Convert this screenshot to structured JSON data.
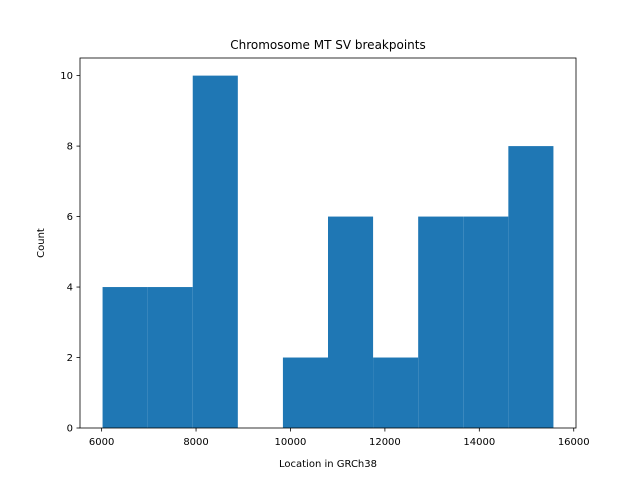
{
  "chart_data": {
    "type": "bar",
    "title": "Chromosome MT SV breakpoints",
    "xlabel": "Location in GRCh38",
    "ylabel": "Count",
    "bins": [
      {
        "start": 6020,
        "end": 6975,
        "count": 4
      },
      {
        "start": 6975,
        "end": 7930,
        "count": 4
      },
      {
        "start": 7930,
        "end": 8885,
        "count": 10
      },
      {
        "start": 8885,
        "end": 9840,
        "count": 0
      },
      {
        "start": 9840,
        "end": 10795,
        "count": 2
      },
      {
        "start": 10795,
        "end": 11750,
        "count": 6
      },
      {
        "start": 11750,
        "end": 12705,
        "count": 2
      },
      {
        "start": 12705,
        "end": 13660,
        "count": 6
      },
      {
        "start": 13660,
        "end": 14615,
        "count": 6
      },
      {
        "start": 14615,
        "end": 15570,
        "count": 8
      }
    ],
    "xlim": [
      5542,
      16048
    ],
    "ylim": [
      0,
      10.5
    ],
    "xticks": [
      6000,
      8000,
      10000,
      12000,
      14000,
      16000
    ],
    "yticks": [
      0,
      2,
      4,
      6,
      8,
      10
    ],
    "grid": false,
    "bar_color": "#1f77b4"
  }
}
